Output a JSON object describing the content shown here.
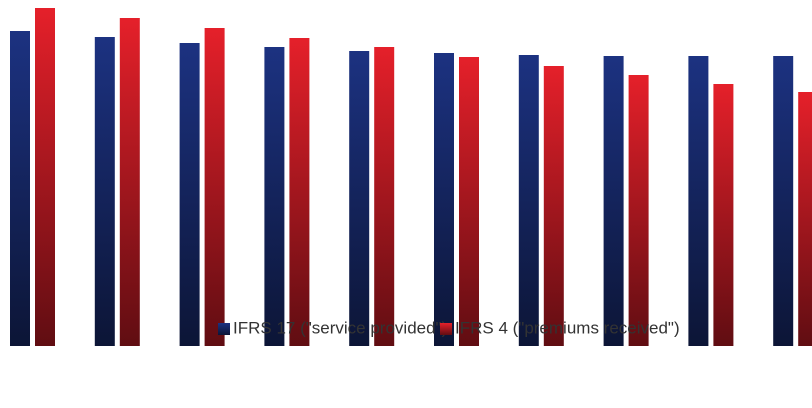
{
  "chart_data": {
    "type": "bar",
    "categories": [
      null,
      null,
      null,
      null,
      null,
      null,
      null,
      null,
      null,
      null
    ],
    "series": [
      {
        "name": "IFRS 17 (\"service provided\")",
        "color": "#1c3281",
        "values": [
          315,
          309,
          303,
          299,
          295,
          293,
          291,
          290,
          290,
          290
        ]
      },
      {
        "name": "IFRS 4 (\"premiums received\")",
        "color": "#e5202a",
        "values": [
          338,
          328,
          318,
          308,
          299,
          289,
          280,
          271,
          262,
          254
        ]
      }
    ],
    "ylim": [
      0,
      346
    ],
    "grid": false,
    "legend": "bottom"
  }
}
